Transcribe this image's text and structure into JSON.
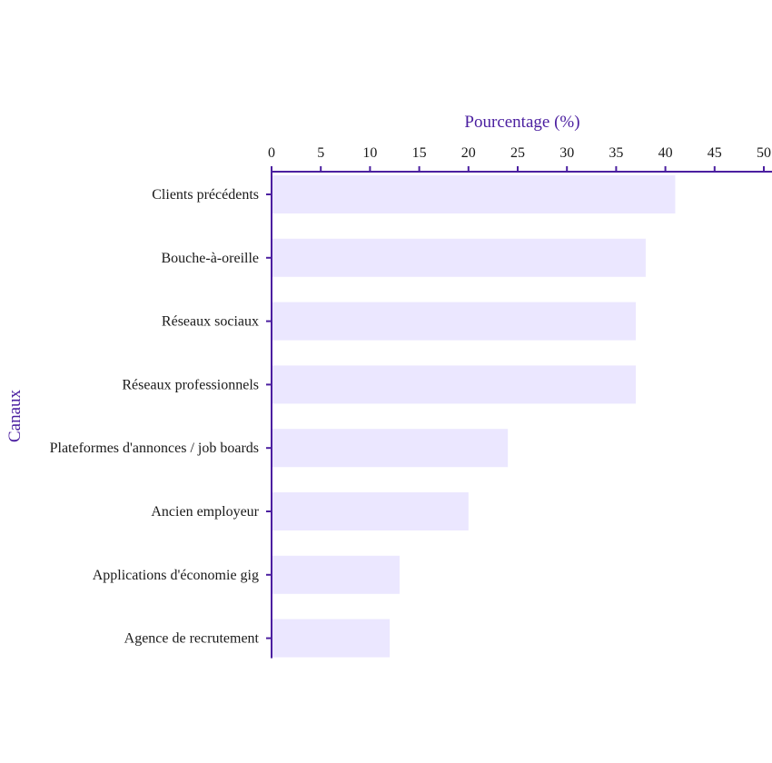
{
  "chart_data": {
    "type": "bar",
    "orientation": "horizontal",
    "categories": [
      "Clients précédents",
      "Bouche-à-oreille",
      "Réseaux sociaux",
      "Réseaux professionnels",
      "Plateformes d'annonces / job boards",
      "Ancien employeur",
      "Applications d'économie gig",
      "Agence de recrutement"
    ],
    "values": [
      41,
      38,
      37,
      37,
      24,
      20,
      13,
      12
    ],
    "title": "",
    "xlabel": "Pourcentage (%)",
    "ylabel": "Canaux",
    "xlim": [
      0,
      50
    ],
    "xticks": [
      0,
      5,
      10,
      15,
      20,
      25,
      30,
      35,
      40,
      45,
      50
    ],
    "x_axis_position": "top",
    "grid": false,
    "legend": "none"
  },
  "colors": {
    "bar_fill": "#ebe7ff",
    "axis": "#4b1fa0",
    "axis_title": "#4b1fa0",
    "tick_label": "#1a1a1a"
  }
}
